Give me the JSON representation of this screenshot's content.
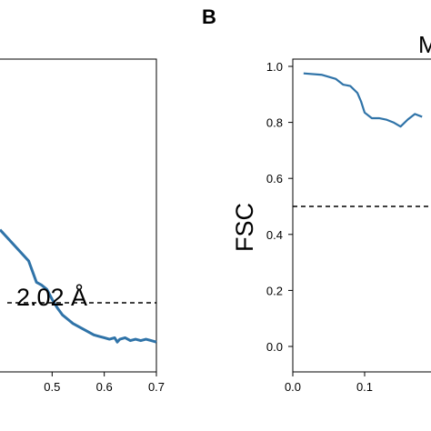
{
  "chart_data": [
    {
      "panel": "",
      "type": "line",
      "xlabel": "",
      "ylabel": "",
      "xlim": [
        0.4,
        0.7
      ],
      "ylim": [
        -0.1,
        1.0
      ],
      "xticks": [
        0.5,
        0.6,
        0.7
      ],
      "xtick_labels": [
        "0.5",
        "0.6",
        "0.7"
      ],
      "threshold": 0.143,
      "annotation": "2.02 Å",
      "series": [
        {
          "color": "#2f73a8",
          "x": [
            0.4,
            0.455,
            0.47,
            0.48,
            0.49,
            0.5,
            0.51,
            0.52,
            0.53,
            0.54,
            0.55,
            0.56,
            0.57,
            0.58,
            0.59,
            0.6,
            0.61,
            0.62,
            0.625,
            0.63,
            0.64,
            0.65,
            0.66,
            0.67,
            0.68,
            0.69,
            0.7
          ],
          "y": [
            0.4,
            0.29,
            0.215,
            0.205,
            0.19,
            0.155,
            0.125,
            0.1,
            0.085,
            0.07,
            0.06,
            0.05,
            0.04,
            0.03,
            0.025,
            0.02,
            0.015,
            0.02,
            0.005,
            0.015,
            0.02,
            0.01,
            0.015,
            0.01,
            0.015,
            0.01,
            0.005
          ]
        }
      ]
    },
    {
      "panel": "B",
      "type": "line",
      "title_fragment": "M",
      "xlabel": "",
      "ylabel": "FSC",
      "xlim": [
        0.0,
        0.18
      ],
      "ylim": [
        -0.1,
        1.02
      ],
      "xticks": [
        0.0,
        0.1
      ],
      "xtick_labels": [
        "0.0",
        "0.1"
      ],
      "yticks": [
        0.0,
        0.2,
        0.4,
        0.6,
        0.8,
        1.0
      ],
      "ytick_labels": [
        "0.0",
        "0.2",
        "0.4",
        "0.6",
        "0.8",
        "1.0"
      ],
      "threshold": 0.5,
      "series": [
        {
          "color": "#2f73a8",
          "x": [
            0.015,
            0.04,
            0.06,
            0.07,
            0.08,
            0.09,
            0.095,
            0.1,
            0.11,
            0.12,
            0.13,
            0.14,
            0.15,
            0.16,
            0.17,
            0.18
          ],
          "y": [
            0.975,
            0.97,
            0.955,
            0.935,
            0.93,
            0.905,
            0.875,
            0.835,
            0.815,
            0.815,
            0.81,
            0.8,
            0.785,
            0.81,
            0.83,
            0.82
          ]
        }
      ]
    }
  ]
}
